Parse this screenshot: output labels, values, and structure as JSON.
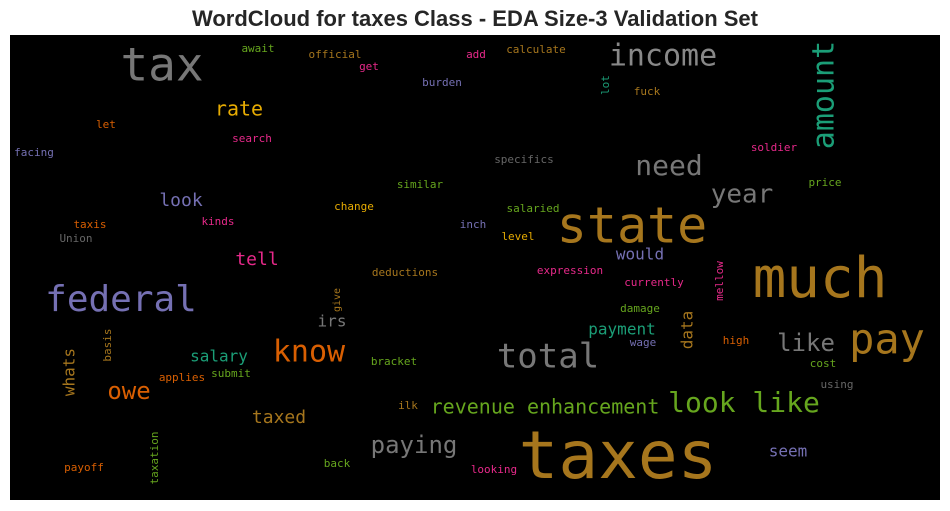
{
  "chart_data": {
    "type": "wordcloud",
    "title": "WordCloud for taxes Class - EDA Size-3 Validation Set",
    "background": "#000000",
    "words": [
      {
        "text": "tax",
        "color": "#777777"
      },
      {
        "text": "income",
        "color": "#888888"
      },
      {
        "text": "amount",
        "color": "#1b9e77"
      },
      {
        "text": "await",
        "color": "#66a61e"
      },
      {
        "text": "official",
        "color": "#a6761d"
      },
      {
        "text": "get",
        "color": "#e7298a"
      },
      {
        "text": "add",
        "color": "#e7298a"
      },
      {
        "text": "calculate",
        "color": "#a6761d"
      },
      {
        "text": "burden",
        "color": "#7570b3"
      },
      {
        "text": "lot",
        "color": "#1b9e77"
      },
      {
        "text": "fuck",
        "color": "#a6761d"
      },
      {
        "text": "rate",
        "color": "#e6ab02"
      },
      {
        "text": "let",
        "color": "#d95f02"
      },
      {
        "text": "search",
        "color": "#e7298a"
      },
      {
        "text": "facing",
        "color": "#7570b3"
      },
      {
        "text": "need",
        "color": "#777777"
      },
      {
        "text": "soldier",
        "color": "#e7298a"
      },
      {
        "text": "specifics",
        "color": "#666666"
      },
      {
        "text": "year",
        "color": "#777777"
      },
      {
        "text": "price",
        "color": "#66a61e"
      },
      {
        "text": "similar",
        "color": "#66a61e"
      },
      {
        "text": "look",
        "color": "#7570b3"
      },
      {
        "text": "change",
        "color": "#e6ab02"
      },
      {
        "text": "state",
        "color": "#a6761d"
      },
      {
        "text": "salaried",
        "color": "#66a61e"
      },
      {
        "text": "taxis",
        "color": "#d95f02"
      },
      {
        "text": "kinds",
        "color": "#e7298a"
      },
      {
        "text": "inch",
        "color": "#7570b3"
      },
      {
        "text": "Union",
        "color": "#666666"
      },
      {
        "text": "level",
        "color": "#e6ab02"
      },
      {
        "text": "much",
        "color": "#a6761d"
      },
      {
        "text": "tell",
        "color": "#e7298a"
      },
      {
        "text": "would",
        "color": "#7570b3"
      },
      {
        "text": "deductions",
        "color": "#a6761d"
      },
      {
        "text": "expression",
        "color": "#e7298a"
      },
      {
        "text": "currently",
        "color": "#e7298a"
      },
      {
        "text": "mellow",
        "color": "#e7298a"
      },
      {
        "text": "give",
        "color": "#a6761d"
      },
      {
        "text": "federal",
        "color": "#7570b3"
      },
      {
        "text": "irs",
        "color": "#777777"
      },
      {
        "text": "damage",
        "color": "#66a61e"
      },
      {
        "text": "data",
        "color": "#a6761d"
      },
      {
        "text": "payment",
        "color": "#1b9e77"
      },
      {
        "text": "pay",
        "color": "#a6761d"
      },
      {
        "text": "basis",
        "color": "#a6761d"
      },
      {
        "text": "wage",
        "color": "#7570b3"
      },
      {
        "text": "know",
        "color": "#d95f02"
      },
      {
        "text": "like",
        "color": "#777777"
      },
      {
        "text": "high",
        "color": "#d95f02"
      },
      {
        "text": "total",
        "color": "#777777"
      },
      {
        "text": "salary",
        "color": "#1b9e77"
      },
      {
        "text": "bracket",
        "color": "#66a61e"
      },
      {
        "text": "cost",
        "color": "#66a61e"
      },
      {
        "text": "whats",
        "color": "#a6761d"
      },
      {
        "text": "owe",
        "color": "#d95f02"
      },
      {
        "text": "applies",
        "color": "#d95f02"
      },
      {
        "text": "submit",
        "color": "#66a61e"
      },
      {
        "text": "using",
        "color": "#666666"
      },
      {
        "text": "look like",
        "color": "#66a61e"
      },
      {
        "text": "revenue enhancement",
        "color": "#66a61e"
      },
      {
        "text": "ilk",
        "color": "#a6761d"
      },
      {
        "text": "taxed",
        "color": "#a6761d"
      },
      {
        "text": "paying",
        "color": "#777777"
      },
      {
        "text": "seem",
        "color": "#7570b3"
      },
      {
        "text": "taxes",
        "color": "#a6761d"
      },
      {
        "text": "taxation",
        "color": "#66a61e"
      },
      {
        "text": "payoff",
        "color": "#d95f02"
      },
      {
        "text": "back",
        "color": "#66a61e"
      },
      {
        "text": "looking",
        "color": "#e7298a"
      }
    ]
  }
}
